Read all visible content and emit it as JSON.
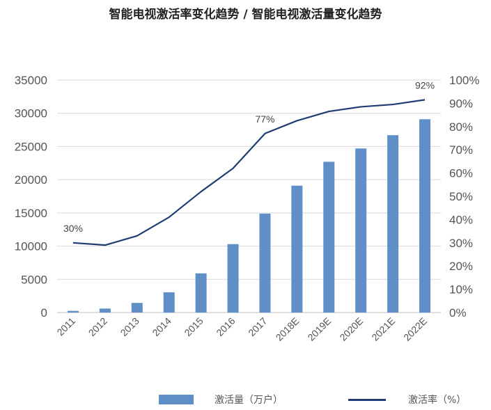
{
  "chart_data": {
    "type": "bar",
    "title": "智能电视激活率变化趋势 / 智能电视激活量变化趋势",
    "categories": [
      "2011",
      "2012",
      "2013",
      "2014",
      "2015",
      "2016",
      "2017",
      "2018E",
      "2019E",
      "2020E",
      "2021E",
      "2022E"
    ],
    "series": [
      {
        "name": "激活量（万户）",
        "type": "bar",
        "axis": "left",
        "values": [
          250,
          600,
          1450,
          3050,
          5900,
          10300,
          14900,
          19100,
          22700,
          24700,
          26700,
          29100
        ]
      },
      {
        "name": "激活率（%）",
        "type": "line",
        "axis": "right",
        "values": [
          30,
          29,
          33,
          41,
          52,
          62,
          77,
          82.5,
          86.5,
          88.5,
          89.5,
          91.5
        ]
      }
    ],
    "left_axis": {
      "ylim": [
        0,
        35000
      ],
      "ticks": [
        "0",
        "5000",
        "10000",
        "15000",
        "20000",
        "25000",
        "30000",
        "35000"
      ]
    },
    "right_axis": {
      "ylim": [
        0,
        100
      ],
      "ticks": [
        "0%",
        "10%",
        "20%",
        "30%",
        "40%",
        "50%",
        "60%",
        "70%",
        "80%",
        "90%",
        "100%"
      ]
    },
    "annotations": [
      {
        "label": "30%",
        "category": "2011",
        "value": 30
      },
      {
        "label": "77%",
        "category": "2017",
        "value": 77
      },
      {
        "label": "92%",
        "category": "2022E",
        "value": 91.5
      }
    ],
    "grid": true,
    "legend_position": "bottom",
    "colors": {
      "bar": "#5f8fc6",
      "line": "#1f3c73",
      "grid": "#d9d9d9"
    }
  },
  "legend": {
    "bar_label": "激活量（万户）",
    "line_label": "激活率（%）"
  }
}
